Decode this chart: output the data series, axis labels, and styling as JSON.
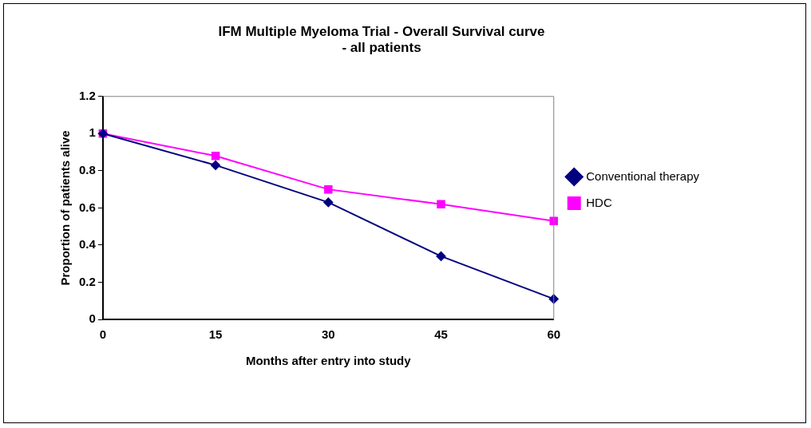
{
  "chart_data": {
    "type": "line",
    "title": "IFM Multiple Myeloma Trial - Overall Survival curve\n- all patients",
    "xlabel": "Months after entry into study",
    "ylabel": "Proportion of patients alive",
    "x": [
      0,
      15,
      30,
      45,
      60
    ],
    "series": [
      {
        "name": "Conventional therapy",
        "color": "#000080",
        "marker": "diamond",
        "values": [
          1.0,
          0.83,
          0.63,
          0.34,
          0.11
        ]
      },
      {
        "name": "HDC",
        "color": "#ff00ff",
        "marker": "square",
        "values": [
          1.0,
          0.88,
          0.7,
          0.62,
          0.53
        ]
      }
    ],
    "xlim": [
      0,
      60
    ],
    "xticks": [
      0,
      15,
      30,
      45,
      60
    ],
    "ylim": [
      0,
      1.2
    ],
    "yticks": [
      0,
      0.2,
      0.4,
      0.6,
      0.8,
      1,
      1.2
    ],
    "grid": false,
    "legend": "right",
    "line_style": "solid"
  }
}
